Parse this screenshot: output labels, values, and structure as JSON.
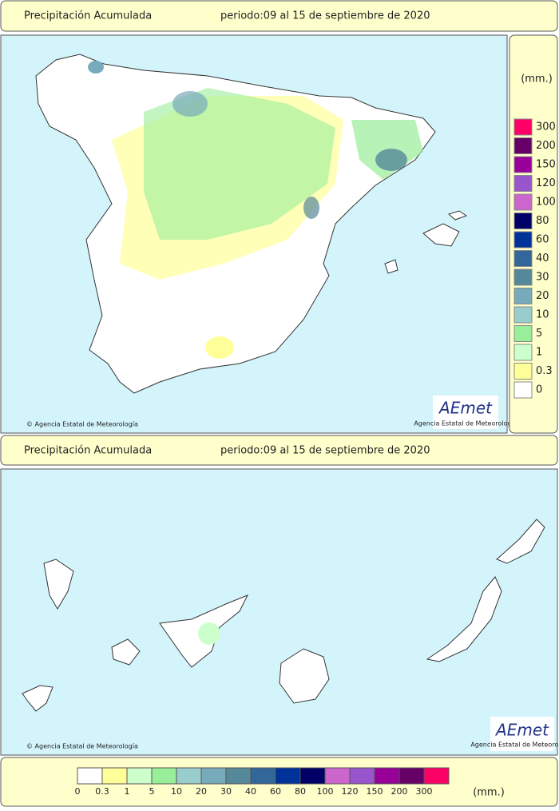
{
  "header": {
    "title": "Precipitación Acumulada",
    "period": "periodo:09 al 15 de septiembre de 2020"
  },
  "peninsula_map": {
    "credit": "© Agencia Estatal de Meteorología",
    "logo": "AEmet",
    "logo_subtitle": "Agencia Estatal de Meteorología"
  },
  "canarias_header": {
    "title": "Precipitación Acumulada",
    "period": "periodo:09 al 15 de septiembre de 2020"
  },
  "canarias_map": {
    "credit": "© Agencia Estatal de Meteorología",
    "logo": "AEmet",
    "logo_subtitle": "Agencia Estatal de Meteorología"
  },
  "legend": {
    "unit": "(mm.)",
    "items": [
      {
        "label": "0",
        "color": "#ffffff"
      },
      {
        "label": "0.3",
        "color": "#ffff99"
      },
      {
        "label": "1",
        "color": "#ccffcc"
      },
      {
        "label": "5",
        "color": "#99ee99"
      },
      {
        "label": "10",
        "color": "#99cccc"
      },
      {
        "label": "20",
        "color": "#77aabb"
      },
      {
        "label": "30",
        "color": "#558899"
      },
      {
        "label": "40",
        "color": "#336699"
      },
      {
        "label": "60",
        "color": "#003399"
      },
      {
        "label": "80",
        "color": "#000066"
      },
      {
        "label": "100",
        "color": "#cc66cc"
      },
      {
        "label": "120",
        "color": "#9955cc"
      },
      {
        "label": "150",
        "color": "#990099"
      },
      {
        "label": "200",
        "color": "#660066"
      },
      {
        "label": "300",
        "color": "#ff0066"
      }
    ]
  },
  "bottom_legend": {
    "unit": "(mm.)"
  }
}
